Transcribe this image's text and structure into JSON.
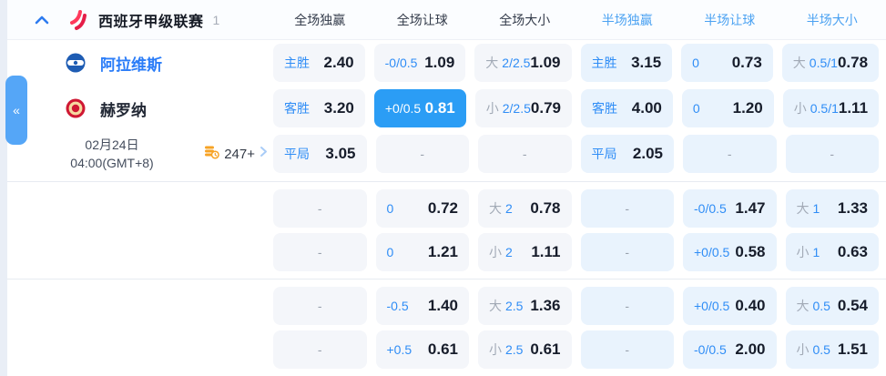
{
  "colors": {
    "accent_blue": "#2f8df6",
    "selected_cell_bg": "#2b9df5",
    "half_header_blue": "#4ba2f2",
    "full_cell_bg": "#f4f6fa",
    "half_cell_bg": "#e9f3fd",
    "league_logo_red": "#ee2b4e",
    "markets_icon_orange": "#f7a325",
    "home_team_blue": "#2b7df8"
  },
  "icons": {
    "collapse_panel": "«"
  },
  "header": {
    "league_name": "西班牙甲级联赛",
    "league_count": "1",
    "columns": [
      {
        "label": "全场独赢",
        "half": false
      },
      {
        "label": "全场让球",
        "half": false
      },
      {
        "label": "全场大小",
        "half": false
      },
      {
        "label": "半场独赢",
        "half": true
      },
      {
        "label": "半场让球",
        "half": true
      },
      {
        "label": "半场大小",
        "half": true
      }
    ]
  },
  "match": {
    "home_team": "阿拉维斯",
    "away_team": "赫罗纳",
    "date": "02月24日",
    "time": "04:00(GMT+8)",
    "markets_count": "247+"
  },
  "odds_rows": [
    {
      "cells": [
        {
          "label": "主胜",
          "value": "2.40",
          "type": "full"
        },
        {
          "label": "-0/0.5",
          "value": "1.09",
          "type": "full"
        },
        {
          "pre": "大",
          "label": "2/2.5",
          "value": "1.09",
          "type": "full"
        },
        {
          "label": "主胜",
          "value": "3.15",
          "type": "half"
        },
        {
          "label": "0",
          "value": "0.73",
          "type": "half"
        },
        {
          "pre": "大",
          "label": "0.5/1",
          "value": "0.78",
          "type": "half"
        }
      ]
    },
    {
      "cells": [
        {
          "label": "客胜",
          "value": "3.20",
          "type": "full"
        },
        {
          "label": "+0/0.5",
          "value": "0.81",
          "type": "selected"
        },
        {
          "pre": "小",
          "label": "2/2.5",
          "value": "0.79",
          "type": "full"
        },
        {
          "label": "客胜",
          "value": "4.00",
          "type": "half"
        },
        {
          "label": "0",
          "value": "1.20",
          "type": "half"
        },
        {
          "pre": "小",
          "label": "0.5/1",
          "value": "1.11",
          "type": "half"
        }
      ]
    },
    {
      "cells": [
        {
          "label": "平局",
          "value": "3.05",
          "type": "full"
        },
        {
          "value": "-",
          "type": "full"
        },
        {
          "value": "-",
          "type": "full"
        },
        {
          "label": "平局",
          "value": "2.05",
          "type": "half"
        },
        {
          "value": "-",
          "type": "half"
        },
        {
          "value": "-",
          "type": "half"
        }
      ]
    },
    {
      "cells": [
        {
          "value": "-",
          "type": "full"
        },
        {
          "label": "0",
          "value": "0.72",
          "type": "full"
        },
        {
          "pre": "大",
          "label": "2",
          "value": "0.78",
          "type": "full"
        },
        {
          "value": "-",
          "type": "half"
        },
        {
          "label": "-0/0.5",
          "value": "1.47",
          "type": "half"
        },
        {
          "pre": "大",
          "label": "1",
          "value": "1.33",
          "type": "half"
        }
      ]
    },
    {
      "cells": [
        {
          "value": "-",
          "type": "full"
        },
        {
          "label": "0",
          "value": "1.21",
          "type": "full"
        },
        {
          "pre": "小",
          "label": "2",
          "value": "1.11",
          "type": "full"
        },
        {
          "value": "-",
          "type": "half"
        },
        {
          "label": "+0/0.5",
          "value": "0.58",
          "type": "half"
        },
        {
          "pre": "小",
          "label": "1",
          "value": "0.63",
          "type": "half"
        }
      ]
    },
    {
      "cells": [
        {
          "value": "-",
          "type": "full"
        },
        {
          "label": "-0.5",
          "value": "1.40",
          "type": "full"
        },
        {
          "pre": "大",
          "label": "2.5",
          "value": "1.36",
          "type": "full"
        },
        {
          "value": "-",
          "type": "half"
        },
        {
          "label": "+0/0.5",
          "value": "0.40",
          "type": "half"
        },
        {
          "pre": "大",
          "label": "0.5",
          "value": "0.54",
          "type": "half"
        }
      ]
    },
    {
      "cells": [
        {
          "value": "-",
          "type": "full"
        },
        {
          "label": "+0.5",
          "value": "0.61",
          "type": "full"
        },
        {
          "pre": "小",
          "label": "2.5",
          "value": "0.61",
          "type": "full"
        },
        {
          "value": "-",
          "type": "half"
        },
        {
          "label": "-0/0.5",
          "value": "2.00",
          "type": "half"
        },
        {
          "pre": "小",
          "label": "0.5",
          "value": "1.51",
          "type": "half"
        }
      ]
    }
  ]
}
